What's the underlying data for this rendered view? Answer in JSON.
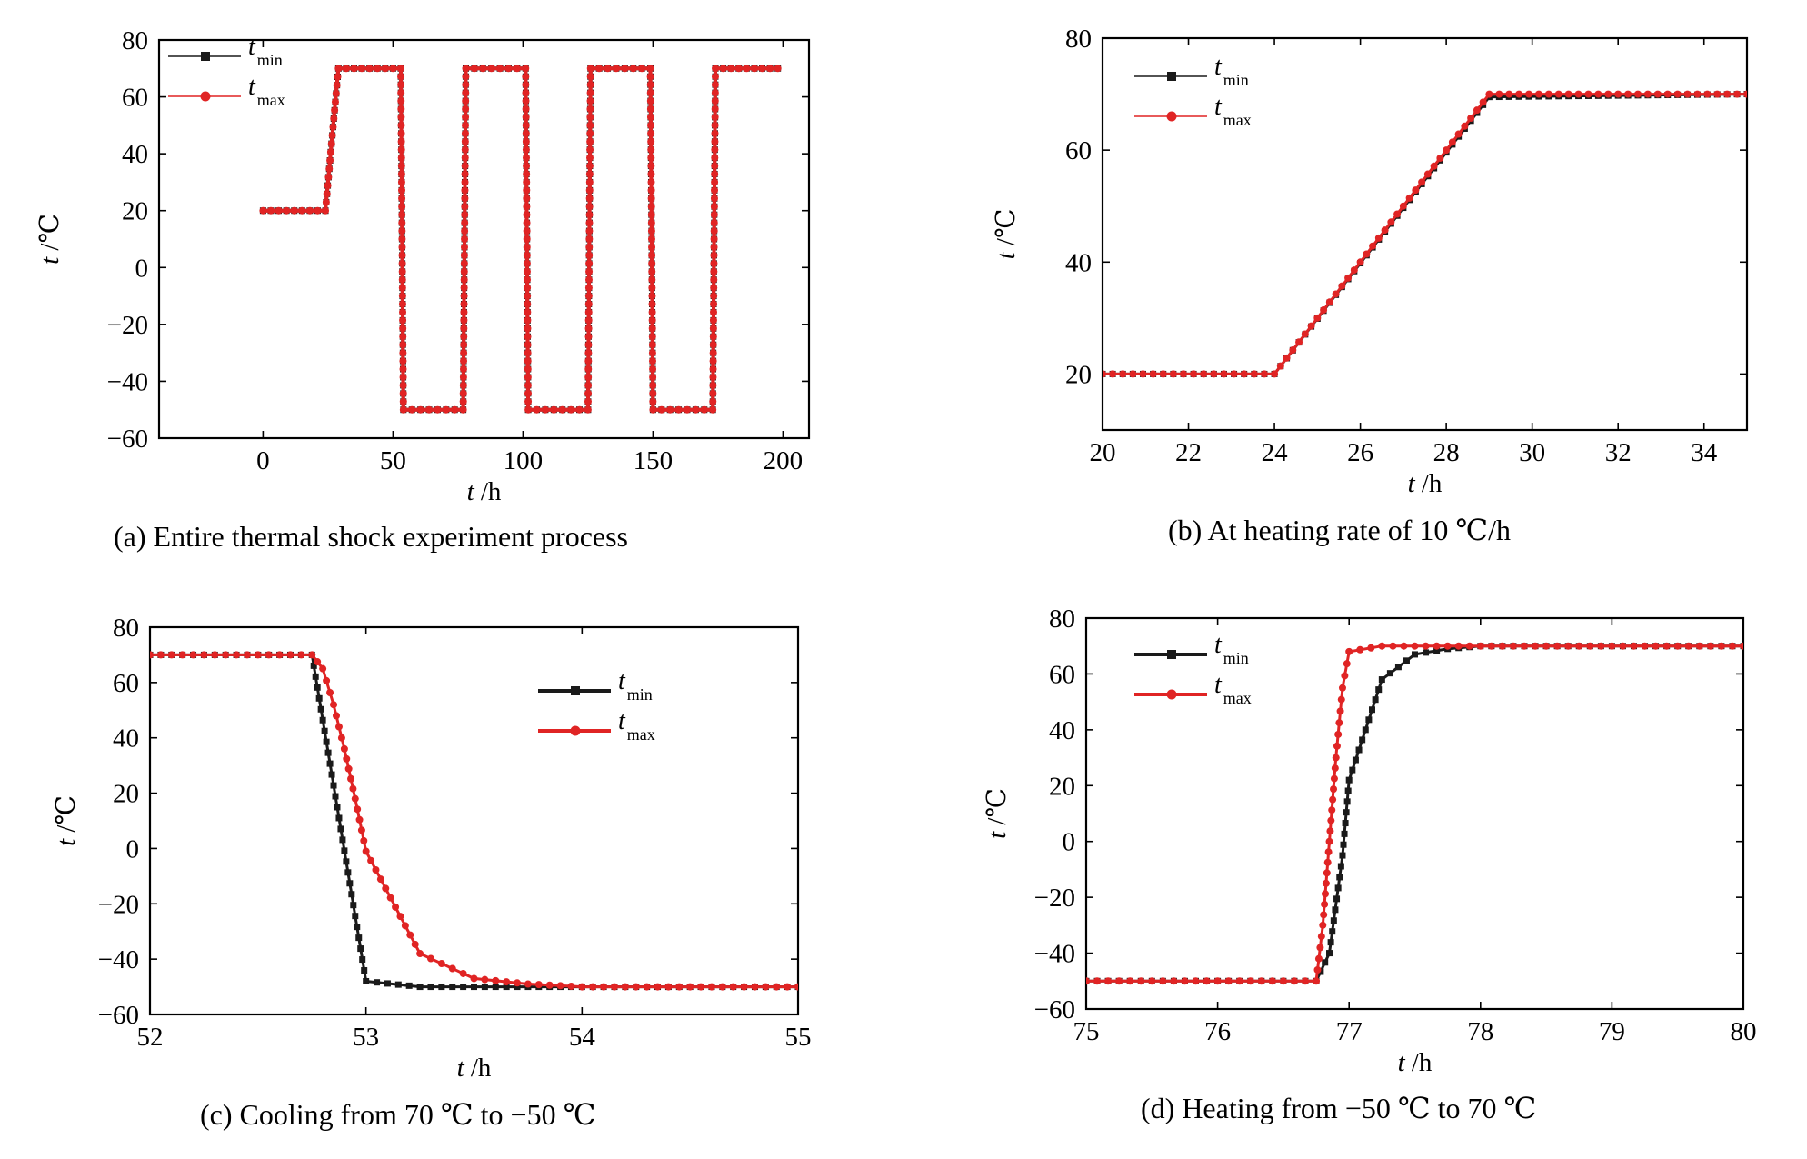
{
  "colors": {
    "tmin": "#1a1a1a",
    "tmax": "#e02424",
    "axis": "#000000",
    "background": "#ffffff"
  },
  "chart_data": [
    {
      "type": "line",
      "caption": "(a)  Entire thermal shock experiment process",
      "xlabel_italic": "t",
      "xlabel_unit": " /h",
      "ylabel_italic": "t",
      "ylabel_unit": " /℃",
      "xlim": [
        -40,
        210
      ],
      "ylim": [
        -60,
        80
      ],
      "xticks": [
        0,
        50,
        100,
        150,
        200
      ],
      "yticks": [
        -60,
        -40,
        -20,
        0,
        20,
        40,
        60,
        80
      ],
      "legend": "top-left",
      "series": [
        {
          "name": "t",
          "sub": "min",
          "key": "tmin",
          "x": [
            0,
            24,
            29,
            53,
            54,
            77,
            78,
            101,
            102,
            125,
            126,
            149,
            150,
            173,
            174,
            198
          ],
          "y": [
            20,
            20,
            70,
            70,
            -50,
            -50,
            70,
            70,
            -50,
            -50,
            70,
            70,
            -50,
            -50,
            70,
            70
          ]
        },
        {
          "name": "t",
          "sub": "max",
          "key": "tmax",
          "x": [
            0,
            24,
            29,
            53,
            54,
            77,
            78,
            101,
            102,
            125,
            126,
            149,
            150,
            173,
            174,
            198
          ],
          "y": [
            20,
            20,
            70,
            70,
            -50,
            -50,
            70,
            70,
            -50,
            -50,
            70,
            70,
            -50,
            -50,
            70,
            70
          ]
        }
      ]
    },
    {
      "type": "line",
      "caption": "(b)  At heating rate of 10 ℃/h",
      "xlabel_italic": "t",
      "xlabel_unit": " /h",
      "ylabel_italic": "t",
      "ylabel_unit": " /℃",
      "xlim": [
        20,
        35
      ],
      "ylim": [
        10,
        80
      ],
      "xticks": [
        20,
        22,
        24,
        26,
        28,
        30,
        32,
        34
      ],
      "yticks": [
        20,
        40,
        60,
        80
      ],
      "legend": "top-left",
      "series": [
        {
          "name": "t",
          "sub": "min",
          "key": "tmin",
          "x": [
            20,
            24,
            29,
            35
          ],
          "y": [
            20,
            20,
            69.5,
            70
          ]
        },
        {
          "name": "t",
          "sub": "max",
          "key": "tmax",
          "x": [
            20,
            24,
            29,
            35
          ],
          "y": [
            20,
            20,
            70,
            70
          ]
        }
      ]
    },
    {
      "type": "line",
      "caption": "(c)  Cooling from 70 ℃ to −50 ℃",
      "xlabel_italic": "t",
      "xlabel_unit": " /h",
      "ylabel_italic": "t",
      "ylabel_unit": " /℃",
      "xlim": [
        52,
        55
      ],
      "ylim": [
        -60,
        80
      ],
      "xticks": [
        52,
        53,
        54,
        55
      ],
      "yticks": [
        -60,
        -40,
        -20,
        0,
        20,
        40,
        60,
        80
      ],
      "legend": "top-right",
      "series": [
        {
          "name": "t",
          "sub": "min",
          "key": "tmin",
          "x": [
            52,
            52.75,
            53.0,
            53.25,
            53.5,
            53.75,
            54,
            54.25,
            54.5,
            54.75,
            55
          ],
          "y": [
            70,
            70,
            -48,
            -50,
            -50,
            -50,
            -50,
            -50,
            -50,
            -50,
            -50
          ]
        },
        {
          "name": "t",
          "sub": "max",
          "key": "tmax",
          "x": [
            52,
            52.75,
            52.8,
            52.85,
            52.9,
            52.95,
            53.0,
            53.25,
            53.5,
            53.75,
            54,
            54.25,
            54.5,
            54.75,
            55
          ],
          "y": [
            70,
            70,
            65,
            52,
            36,
            18,
            -1,
            -38,
            -47,
            -49,
            -50,
            -50,
            -50,
            -50,
            -50
          ]
        }
      ]
    },
    {
      "type": "line",
      "caption": "(d)  Heating from −50 ℃ to 70 ℃",
      "xlabel_italic": "t",
      "xlabel_unit": " /h",
      "ylabel_italic": "t",
      "ylabel_unit": " /℃",
      "xlim": [
        75,
        80
      ],
      "ylim": [
        -60,
        80
      ],
      "xticks": [
        75,
        76,
        77,
        78,
        79,
        80
      ],
      "yticks": [
        -60,
        -40,
        -20,
        0,
        20,
        40,
        60,
        80
      ],
      "legend": "top-left",
      "series": [
        {
          "name": "t",
          "sub": "min",
          "key": "tmin",
          "x": [
            75,
            76.75,
            76.85,
            76.95,
            77.0,
            77.25,
            77.5,
            77.75,
            78,
            80
          ],
          "y": [
            -50,
            -50,
            -40,
            -5,
            22,
            58,
            67,
            69,
            70,
            70
          ]
        },
        {
          "name": "t",
          "sub": "max",
          "key": "tmax",
          "x": [
            75,
            76.75,
            76.8,
            76.85,
            76.9,
            76.95,
            77.0,
            77.25,
            77.5,
            78,
            80
          ],
          "y": [
            -50,
            -50,
            -30,
            0,
            30,
            55,
            68,
            70,
            70,
            70,
            70
          ]
        }
      ]
    }
  ]
}
